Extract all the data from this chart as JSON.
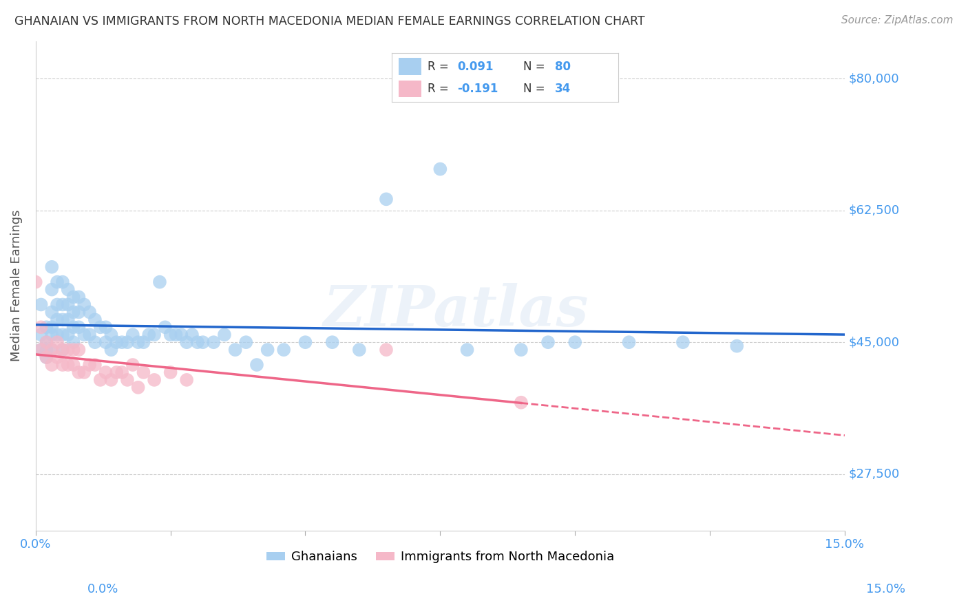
{
  "title": "GHANAIAN VS IMMIGRANTS FROM NORTH MACEDONIA MEDIAN FEMALE EARNINGS CORRELATION CHART",
  "source": "Source: ZipAtlas.com",
  "ylabel": "Median Female Earnings",
  "xlim": [
    0.0,
    0.15
  ],
  "ylim": [
    20000,
    85000
  ],
  "yticks": [
    27500,
    45000,
    62500,
    80000
  ],
  "ytick_labels": [
    "$27,500",
    "$45,000",
    "$62,500",
    "$80,000"
  ],
  "xticks": [
    0.0,
    0.025,
    0.05,
    0.075,
    0.1,
    0.125,
    0.15
  ],
  "xtick_labels": [
    "0.0%",
    "",
    "",
    "",
    "",
    "",
    "15.0%"
  ],
  "background_color": "#ffffff",
  "grid_color": "#cccccc",
  "blue_color": "#a8cff0",
  "pink_color": "#f5b8c8",
  "blue_line_color": "#2266cc",
  "pink_line_color": "#ee6688",
  "right_label_color": "#4499ee",
  "title_color": "#333333",
  "source_color": "#999999",
  "axis_label_color": "#555555",
  "R1": 0.091,
  "N1": 80,
  "R2": -0.191,
  "N2": 34,
  "watermark": "ZIPatlas",
  "blue_points_x": [
    0.001,
    0.001,
    0.001,
    0.002,
    0.002,
    0.002,
    0.002,
    0.003,
    0.003,
    0.003,
    0.003,
    0.003,
    0.003,
    0.004,
    0.004,
    0.004,
    0.004,
    0.005,
    0.005,
    0.005,
    0.005,
    0.005,
    0.006,
    0.006,
    0.006,
    0.006,
    0.007,
    0.007,
    0.007,
    0.007,
    0.008,
    0.008,
    0.008,
    0.009,
    0.009,
    0.01,
    0.01,
    0.011,
    0.011,
    0.012,
    0.013,
    0.013,
    0.014,
    0.014,
    0.015,
    0.016,
    0.017,
    0.018,
    0.019,
    0.02,
    0.021,
    0.022,
    0.023,
    0.024,
    0.025,
    0.026,
    0.027,
    0.028,
    0.029,
    0.03,
    0.031,
    0.033,
    0.035,
    0.037,
    0.039,
    0.041,
    0.043,
    0.046,
    0.05,
    0.055,
    0.06,
    0.065,
    0.075,
    0.08,
    0.09,
    0.095,
    0.1,
    0.11,
    0.12,
    0.13
  ],
  "blue_points_y": [
    50000,
    46000,
    44000,
    47000,
    45000,
    44000,
    43000,
    55000,
    52000,
    49000,
    47000,
    46000,
    44000,
    53000,
    50000,
    48000,
    46000,
    53000,
    50000,
    48000,
    46000,
    44000,
    52000,
    50000,
    48000,
    46000,
    51000,
    49000,
    47000,
    45000,
    51000,
    49000,
    47000,
    50000,
    46000,
    49000,
    46000,
    48000,
    45000,
    47000,
    47000,
    45000,
    46000,
    44000,
    45000,
    45000,
    45000,
    46000,
    45000,
    45000,
    46000,
    46000,
    53000,
    47000,
    46000,
    46000,
    46000,
    45000,
    46000,
    45000,
    45000,
    45000,
    46000,
    44000,
    45000,
    42000,
    44000,
    44000,
    45000,
    45000,
    44000,
    64000,
    68000,
    44000,
    44000,
    45000,
    45000,
    45000,
    45000,
    44500
  ],
  "pink_points_x": [
    0.0,
    0.001,
    0.001,
    0.002,
    0.002,
    0.003,
    0.003,
    0.004,
    0.004,
    0.005,
    0.005,
    0.006,
    0.006,
    0.007,
    0.007,
    0.008,
    0.008,
    0.009,
    0.01,
    0.011,
    0.012,
    0.013,
    0.014,
    0.015,
    0.016,
    0.017,
    0.018,
    0.019,
    0.02,
    0.022,
    0.025,
    0.028,
    0.065,
    0.09
  ],
  "pink_points_y": [
    53000,
    47000,
    44000,
    45000,
    43000,
    44000,
    42000,
    45000,
    43000,
    44000,
    42000,
    44000,
    42000,
    44000,
    42000,
    44000,
    41000,
    41000,
    42000,
    42000,
    40000,
    41000,
    40000,
    41000,
    41000,
    40000,
    42000,
    39000,
    41000,
    40000,
    41000,
    40000,
    44000,
    37000
  ]
}
